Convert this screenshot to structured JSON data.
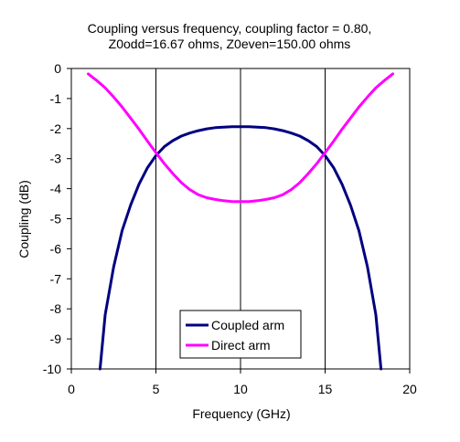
{
  "chart_data": {
    "type": "line",
    "title_lines": [
      "Coupling versus frequency, coupling factor = 0.80,",
      "Z0odd=16.67 ohms, Z0even=150.00 ohms"
    ],
    "xlabel": "Frequency (GHz)",
    "ylabel": "Coupling (dB)",
    "xlim": [
      0,
      20
    ],
    "ylim": [
      -10,
      0
    ],
    "x_ticks": [
      "0",
      "5",
      "10",
      "15",
      "20"
    ],
    "y_ticks": [
      "0",
      "-1",
      "-2",
      "-3",
      "-4",
      "-5",
      "-6",
      "-7",
      "-8",
      "-9",
      "-10"
    ],
    "grid": "vertical",
    "legend_position": "bottom-center",
    "series": [
      {
        "name": "Coupled arm",
        "color": "#000080",
        "x": [
          1.7,
          2.0,
          2.5,
          3.0,
          3.5,
          4.0,
          4.5,
          5.0,
          5.5,
          6.0,
          6.5,
          7.0,
          7.5,
          8.0,
          8.5,
          9.0,
          9.5,
          10.0,
          10.5,
          11.0,
          11.5,
          12.0,
          12.5,
          13.0,
          13.5,
          14.0,
          14.5,
          15.0,
          15.5,
          16.0,
          16.5,
          17.0,
          17.5,
          18.0,
          18.3
        ],
        "y": [
          -10.0,
          -8.2,
          -6.6,
          -5.4,
          -4.55,
          -3.85,
          -3.3,
          -2.9,
          -2.6,
          -2.4,
          -2.25,
          -2.15,
          -2.07,
          -2.01,
          -1.97,
          -1.95,
          -1.94,
          -1.94,
          -1.94,
          -1.95,
          -1.97,
          -2.01,
          -2.07,
          -2.15,
          -2.25,
          -2.4,
          -2.6,
          -2.9,
          -3.3,
          -3.85,
          -4.55,
          -5.4,
          -6.6,
          -8.2,
          -10.0
        ]
      },
      {
        "name": "Direct arm",
        "color": "#ff00ff",
        "x": [
          1.0,
          1.5,
          2.0,
          2.5,
          3.0,
          3.5,
          4.0,
          4.5,
          5.0,
          5.5,
          6.0,
          6.5,
          7.0,
          7.5,
          8.0,
          8.5,
          9.0,
          9.5,
          10.0,
          10.5,
          11.0,
          11.5,
          12.0,
          12.5,
          13.0,
          13.5,
          14.0,
          14.5,
          15.0,
          15.5,
          16.0,
          16.5,
          17.0,
          17.5,
          18.0,
          18.5,
          19.0
        ],
        "y": [
          -0.18,
          -0.4,
          -0.64,
          -0.95,
          -1.28,
          -1.65,
          -2.02,
          -2.42,
          -2.8,
          -3.17,
          -3.5,
          -3.8,
          -4.03,
          -4.2,
          -4.3,
          -4.36,
          -4.4,
          -4.43,
          -4.43,
          -4.43,
          -4.4,
          -4.36,
          -4.3,
          -4.2,
          -4.03,
          -3.8,
          -3.5,
          -3.17,
          -2.8,
          -2.42,
          -2.02,
          -1.65,
          -1.28,
          -0.95,
          -0.64,
          -0.4,
          -0.18
        ]
      }
    ]
  }
}
